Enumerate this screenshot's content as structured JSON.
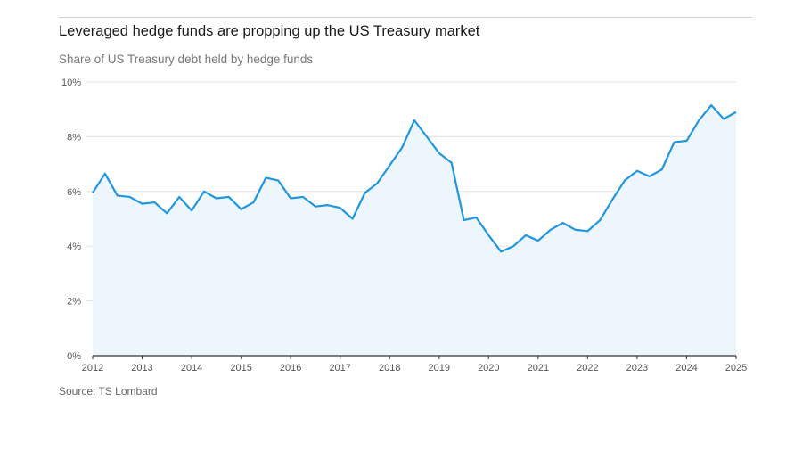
{
  "title": "Leveraged hedge funds are propping up the US Treasury market",
  "subtitle": "Share of US Treasury debt held by hedge funds",
  "source": "Source: TS Lombard",
  "colors": {
    "line": "#1f96e0",
    "area": "#eef6fd",
    "grid": "#e2e2e2",
    "axis": "#333333"
  },
  "chart_data": {
    "type": "area",
    "x": [
      2012.0,
      2012.25,
      2012.5,
      2012.75,
      2013.0,
      2013.25,
      2013.5,
      2013.75,
      2014.0,
      2014.25,
      2014.5,
      2014.75,
      2015.0,
      2015.25,
      2015.5,
      2015.75,
      2016.0,
      2016.25,
      2016.5,
      2016.75,
      2017.0,
      2017.25,
      2017.5,
      2017.75,
      2018.0,
      2018.25,
      2018.5,
      2018.75,
      2019.0,
      2019.25,
      2019.5,
      2019.75,
      2020.0,
      2020.25,
      2020.5,
      2020.75,
      2021.0,
      2021.25,
      2021.5,
      2021.75,
      2022.0,
      2022.25,
      2022.5,
      2022.75,
      2023.0,
      2023.25,
      2023.5,
      2023.75,
      2024.0,
      2024.25,
      2024.5,
      2024.75,
      2025.0
    ],
    "values": [
      5.95,
      6.65,
      5.85,
      5.8,
      5.55,
      5.6,
      5.2,
      5.8,
      5.3,
      6.0,
      5.75,
      5.8,
      5.35,
      5.6,
      6.5,
      6.4,
      5.75,
      5.8,
      5.45,
      5.5,
      5.4,
      5.0,
      5.95,
      6.3,
      6.95,
      7.6,
      8.6,
      8.0,
      7.4,
      7.05,
      4.95,
      5.05,
      4.4,
      3.8,
      4.0,
      4.4,
      4.2,
      4.6,
      4.85,
      4.6,
      4.55,
      4.95,
      5.7,
      6.4,
      6.75,
      6.55,
      6.8,
      7.8,
      7.85,
      8.6,
      9.15,
      8.65,
      8.9
    ],
    "xticks": [
      2012,
      2013,
      2014,
      2015,
      2016,
      2017,
      2018,
      2019,
      2020,
      2021,
      2022,
      2023,
      2024,
      2025
    ],
    "xtick_labels": [
      "2012",
      "2013",
      "2014",
      "2015",
      "2016",
      "2017",
      "2018",
      "2019",
      "2020",
      "2021",
      "2022",
      "2023",
      "2024",
      "2025"
    ],
    "yticks": [
      0,
      2,
      4,
      6,
      8,
      10
    ],
    "ytick_labels": [
      "0%",
      "2%",
      "4%",
      "6%",
      "8%",
      "10%"
    ],
    "xlim": [
      2012,
      2025
    ],
    "ylim": [
      0,
      10
    ],
    "xlabel": "",
    "ylabel": "",
    "grid": "horizontal",
    "legend": "none"
  }
}
